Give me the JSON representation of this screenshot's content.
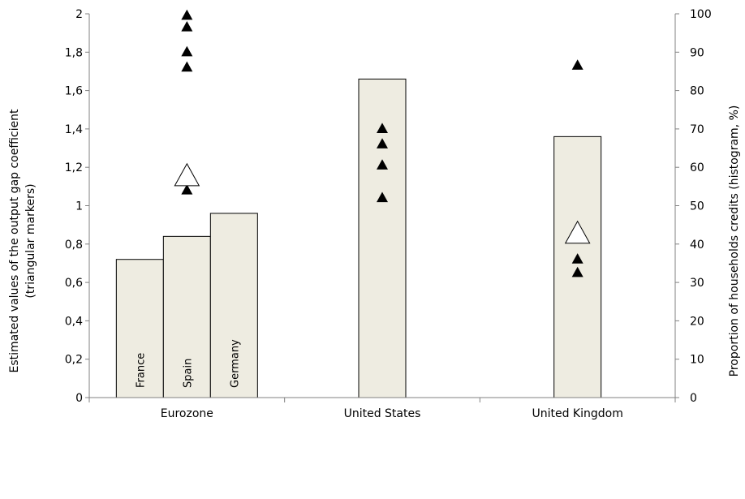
{
  "chart_data": {
    "type": "bar",
    "categories": [
      "Eurozone",
      "United States",
      "United Kingdom"
    ],
    "ylabel": "Estimated values of the output gap coefficient",
    "ylabel_line2": "(triangular markers)",
    "y2label": "Proportion of households credits (histogram, %)",
    "ylim": [
      0,
      2
    ],
    "y2lim": [
      0,
      100
    ],
    "y_ticks": [
      "0",
      "0,2",
      "0,4",
      "0,6",
      "0,8",
      "1",
      "1,2",
      "1,4",
      "1,6",
      "1,8",
      "2"
    ],
    "y2_ticks": [
      "0",
      "10",
      "20",
      "30",
      "40",
      "50",
      "60",
      "70",
      "80",
      "90",
      "100"
    ],
    "grid": false,
    "bars": [
      {
        "group": "Eurozone",
        "label": "France",
        "value": 36
      },
      {
        "group": "Eurozone",
        "label": "Spain",
        "value": 42
      },
      {
        "group": "Eurozone",
        "label": "Germany",
        "value": 48
      },
      {
        "group": "United States",
        "label": "",
        "value": 83
      },
      {
        "group": "United Kingdom",
        "label": "",
        "value": 68
      }
    ],
    "markers": [
      {
        "group": "Eurozone",
        "filled": [
          1.99,
          1.93,
          1.8,
          1.72,
          1.08
        ],
        "hollow": [
          1.15
        ]
      },
      {
        "group": "United States",
        "filled": [
          1.4,
          1.32,
          1.21,
          1.04
        ],
        "hollow": []
      },
      {
        "group": "United Kingdom",
        "filled": [
          1.73,
          0.72,
          0.65
        ],
        "hollow": [
          0.85
        ]
      }
    ],
    "colors": {
      "bar_fill": "#eeece1",
      "bar_stroke": "#000000",
      "marker": "#000000"
    }
  }
}
